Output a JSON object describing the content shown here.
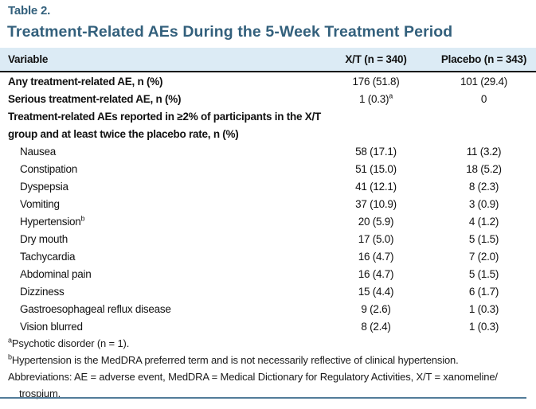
{
  "page": {
    "table_label": "Table 2.",
    "title": "Treatment-Related AEs During the 5-Week Treatment Period"
  },
  "colors": {
    "accent_teal": "#33607c",
    "header_bg": "#dcebf5",
    "header_rule": "#161616",
    "bottom_rule": "#527c99"
  },
  "table": {
    "columns": [
      "Variable",
      "X/T (n = 340)",
      "Placebo (n = 343)"
    ],
    "rows": [
      {
        "label": "Any treatment-related AE, n (%)",
        "bold": true,
        "xt": "176 (51.8)",
        "placebo": "101 (29.4)"
      },
      {
        "label": "Serious treatment-related AE, n (%)",
        "bold": true,
        "xt": "1 (0.3)",
        "xt_sup": "a",
        "placebo": "0"
      },
      {
        "bold": true,
        "lines": [
          "Treatment-related AEs reported in ≥2% of participants in the X/T",
          "group and at least twice the placebo rate, n (%)"
        ]
      },
      {
        "label": "Nausea",
        "indent": true,
        "xt": "58 (17.1)",
        "placebo": "11 (3.2)"
      },
      {
        "label": "Constipation",
        "indent": true,
        "xt": "51 (15.0)",
        "placebo": "18 (5.2)"
      },
      {
        "label": "Dyspepsia",
        "indent": true,
        "xt": "41 (12.1)",
        "placebo": "8 (2.3)"
      },
      {
        "label": "Vomiting",
        "indent": true,
        "xt": "37 (10.9)",
        "placebo": "3 (0.9)"
      },
      {
        "label": "Hypertension",
        "label_sup": "b",
        "indent": true,
        "xt": "20 (5.9)",
        "placebo": "4 (1.2)"
      },
      {
        "label": "Dry mouth",
        "indent": true,
        "xt": "17 (5.0)",
        "placebo": "5 (1.5)"
      },
      {
        "label": "Tachycardia",
        "indent": true,
        "xt": "16 (4.7)",
        "placebo": "7 (2.0)"
      },
      {
        "label": "Abdominal pain",
        "indent": true,
        "xt": "16 (4.7)",
        "placebo": "5 (1.5)"
      },
      {
        "label": "Dizziness",
        "indent": true,
        "xt": "15 (4.4)",
        "placebo": "6 (1.7)"
      },
      {
        "label": "Gastroesophageal reflux disease",
        "indent": true,
        "xt": "9 (2.6)",
        "placebo": "1 (0.3)"
      },
      {
        "label": "Vision blurred",
        "indent": true,
        "xt": "8 (2.4)",
        "placebo": "1 (0.3)"
      }
    ]
  },
  "footnotes": [
    {
      "sup": "a",
      "text": "Psychotic disorder (n = 1)."
    },
    {
      "sup": "b",
      "text": "Hypertension is the MedDRA preferred term and is not necessarily reflective of clinical hypertension."
    },
    {
      "sup": "",
      "text": "Abbreviations: AE = adverse event, MedDRA = Medical Dictionary for Regulatory Activities, X/T = xanomeline/",
      "continuation": "trospium."
    }
  ]
}
